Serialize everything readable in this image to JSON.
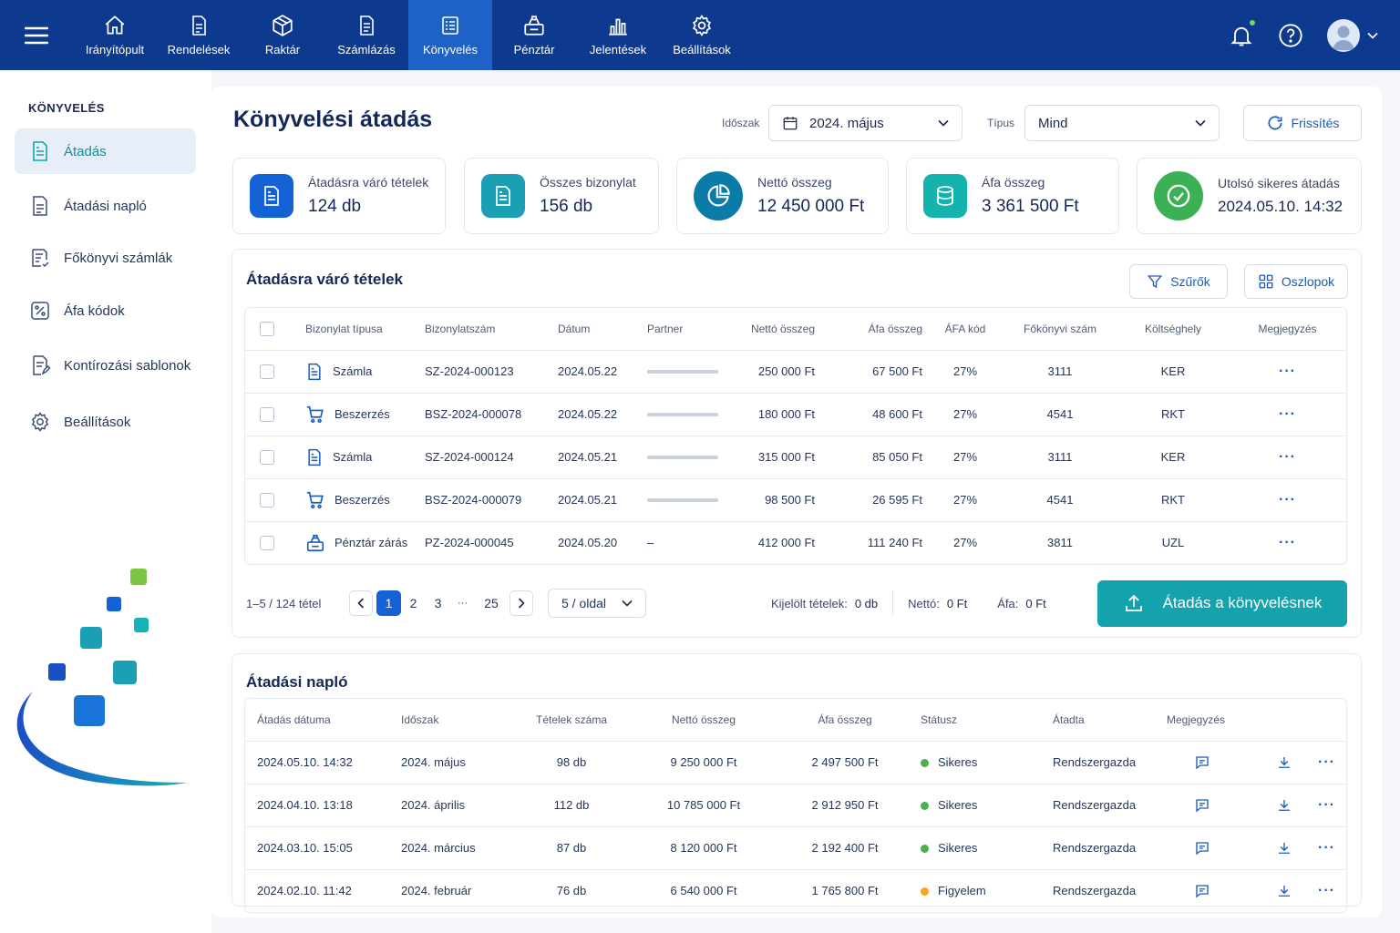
{
  "nav": {
    "items": [
      {
        "label": "Irányítópult",
        "icon": "home-icon"
      },
      {
        "label": "Rendelések",
        "icon": "orders-icon"
      },
      {
        "label": "Raktár",
        "icon": "warehouse-icon"
      },
      {
        "label": "Számlázás",
        "icon": "invoice-icon"
      },
      {
        "label": "Könyvelés",
        "icon": "ledger-icon"
      },
      {
        "label": "Pénztár",
        "icon": "cashier-icon"
      },
      {
        "label": "Jelentések",
        "icon": "chart-icon"
      },
      {
        "label": "Beállítások",
        "icon": "gear-icon"
      }
    ],
    "active": "Könyvelés"
  },
  "sidebar": {
    "title": "KÖNYVELÉS",
    "items": [
      {
        "label": "Átadás"
      },
      {
        "label": "Átadási napló"
      },
      {
        "label": "Főkönyvi számlák"
      },
      {
        "label": "Áfa kódok"
      },
      {
        "label": "Kontírozási sablonok"
      },
      {
        "label": "Beállítások"
      }
    ]
  },
  "page": {
    "title": "Könyvelési átadás",
    "period_label": "Időszak",
    "period_value": "2024. május",
    "type_label": "Típus",
    "type_value": "Mind",
    "refresh_label": "Frissítés"
  },
  "stats": [
    {
      "label": "Átadásra váró tételek",
      "value": "124 db",
      "color": "#1463d6"
    },
    {
      "label": "Összes bizonylat",
      "value": "156 db",
      "color": "#1a9fb5"
    },
    {
      "label": "Nettó összeg",
      "value": "12 450 000 Ft",
      "color": "#0b7ba8"
    },
    {
      "label": "Áfa összeg",
      "value": "3 361 500 Ft",
      "color": "#14b3ad"
    },
    {
      "label": "Utolsó sikeres átadás",
      "value": "2024.05.10. 14:32",
      "color": "#3cb055"
    }
  ],
  "pending": {
    "title": "Átadásra váró tételek",
    "filters_label": "Szűrők",
    "columns_label": "Oszlopok",
    "headers": [
      "Bizonylat típusa",
      "Bizonylatszám",
      "Dátum",
      "Partner",
      "Nettó összeg",
      "Áfa összeg",
      "ÁFA kód",
      "Főkönyvi szám",
      "Költséghely",
      "Megjegyzés"
    ],
    "rows": [
      {
        "type": "Számla",
        "icon": "document-icon",
        "number": "SZ-2024-000123",
        "date": "2024.05.22",
        "partner": "",
        "net": "250 000 Ft",
        "vat": "67 500 Ft",
        "vat_code": "27%",
        "ledger": "3111",
        "cost_center": "KER",
        "more": "···"
      },
      {
        "type": "Beszerzés",
        "icon": "cart-icon",
        "number": "BSZ-2024-000078",
        "date": "2024.05.22",
        "partner": "",
        "net": "180 000 Ft",
        "vat": "48 600 Ft",
        "vat_code": "27%",
        "ledger": "4541",
        "cost_center": "RKT",
        "more": "···"
      },
      {
        "type": "Számla",
        "icon": "document-icon",
        "number": "SZ-2024-000124",
        "date": "2024.05.21",
        "partner": "",
        "net": "315 000 Ft",
        "vat": "85 050 Ft",
        "vat_code": "27%",
        "ledger": "3111",
        "cost_center": "KER",
        "more": "···"
      },
      {
        "type": "Beszerzés",
        "icon": "cart-icon",
        "number": "BSZ-2024-000079",
        "date": "2024.05.21",
        "partner": "",
        "net": "98 500 Ft",
        "vat": "26 595 Ft",
        "vat_code": "27%",
        "ledger": "4541",
        "cost_center": "RKT",
        "more": "···"
      },
      {
        "type": "Pénztár zárás",
        "icon": "cashier-icon",
        "number": "PZ-2024-000045",
        "date": "2024.05.20",
        "partner": "–",
        "net": "412 000 Ft",
        "vat": "111 240 Ft",
        "vat_code": "27%",
        "ledger": "3811",
        "cost_center": "UZL",
        "more": "···"
      }
    ],
    "pagination": {
      "range": "1–5 / 124 tétel",
      "pages": [
        "1",
        "2",
        "3",
        "···",
        "25"
      ],
      "current": "1",
      "per_page": "5 / oldal"
    },
    "selected_label": "Kijelölt tételek:",
    "selected_value": "0 db",
    "net_label": "Nettó:",
    "net_value": "0 Ft",
    "vat_label": "Áfa:",
    "vat_value": "0 Ft",
    "submit_label": "Átadás a könyvelésnek"
  },
  "log": {
    "title": "Átadási napló",
    "headers": [
      "Átadás dátuma",
      "Időszak",
      "Tételek száma",
      "Nettó összeg",
      "Áfa összeg",
      "Státusz",
      "Átadta",
      "Megjegyzés"
    ],
    "rows": [
      {
        "date": "2024.05.10. 14:32",
        "period": "2024. május",
        "count": "98 db",
        "net": "9 250 000 Ft",
        "vat": "2 497 500 Ft",
        "status": "Sikeres",
        "status_color": "#4caf50",
        "by": "Rendszergazda",
        "more": "···"
      },
      {
        "date": "2024.04.10. 13:18",
        "period": "2024. április",
        "count": "112 db",
        "net": "10 785 000 Ft",
        "vat": "2 912 950 Ft",
        "status": "Sikeres",
        "status_color": "#4caf50",
        "by": "Rendszergazda",
        "more": "···"
      },
      {
        "date": "2024.03.10. 15:05",
        "period": "2024. március",
        "count": "87 db",
        "net": "8 120 000 Ft",
        "vat": "2 192 400 Ft",
        "status": "Sikeres",
        "status_color": "#4caf50",
        "by": "Rendszergazda",
        "more": "···"
      },
      {
        "date": "2024.02.10. 11:42",
        "period": "2024. február",
        "count": "76 db",
        "net": "6 540 000 Ft",
        "vat": "1 765 800 Ft",
        "status": "Figyelem",
        "status_color": "#f5a623",
        "by": "Rendszergazda",
        "more": "···"
      }
    ]
  },
  "colors": {
    "nav": "#0d3a8f",
    "nav_active": "#1f62c7",
    "accent": "#14a3ad",
    "primary": "#1463d6"
  }
}
